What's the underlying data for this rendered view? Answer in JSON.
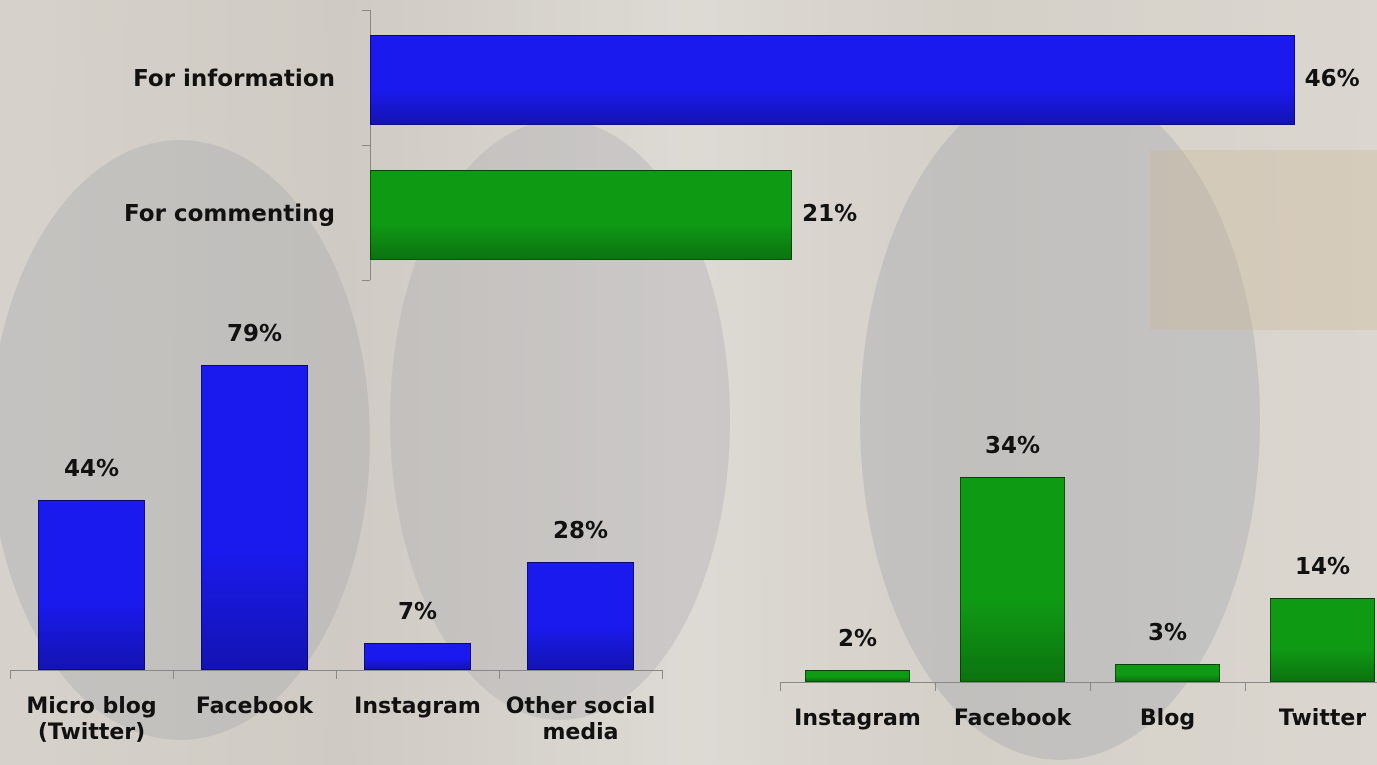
{
  "chart_data": [
    {
      "type": "bar",
      "orientation": "horizontal",
      "categories": [
        "For information",
        "For commenting"
      ],
      "values": [
        46,
        21
      ],
      "value_labels": [
        "46%",
        "21%"
      ],
      "colors": [
        "#1a1aee",
        "#0f9a14"
      ]
    },
    {
      "type": "bar",
      "orientation": "vertical",
      "categories": [
        "Micro blog (Twitter)",
        "Facebook",
        "Instagram",
        "Other social media"
      ],
      "values": [
        44,
        79,
        7,
        28
      ],
      "value_labels": [
        "44%",
        "79%",
        "7%",
        "28%"
      ],
      "colors": [
        "#1a1aee",
        "#1a1aee",
        "#1a1aee",
        "#1a1aee"
      ]
    },
    {
      "type": "bar",
      "orientation": "vertical",
      "categories": [
        "Instagram",
        "Facebook",
        "Blog",
        "Twitter"
      ],
      "values": [
        2,
        34,
        3,
        14
      ],
      "value_labels": [
        "2%",
        "34%",
        "3%",
        "14%"
      ],
      "colors": [
        "#0f9a14",
        "#0f9a14",
        "#0f9a14",
        "#0f9a14"
      ]
    }
  ]
}
